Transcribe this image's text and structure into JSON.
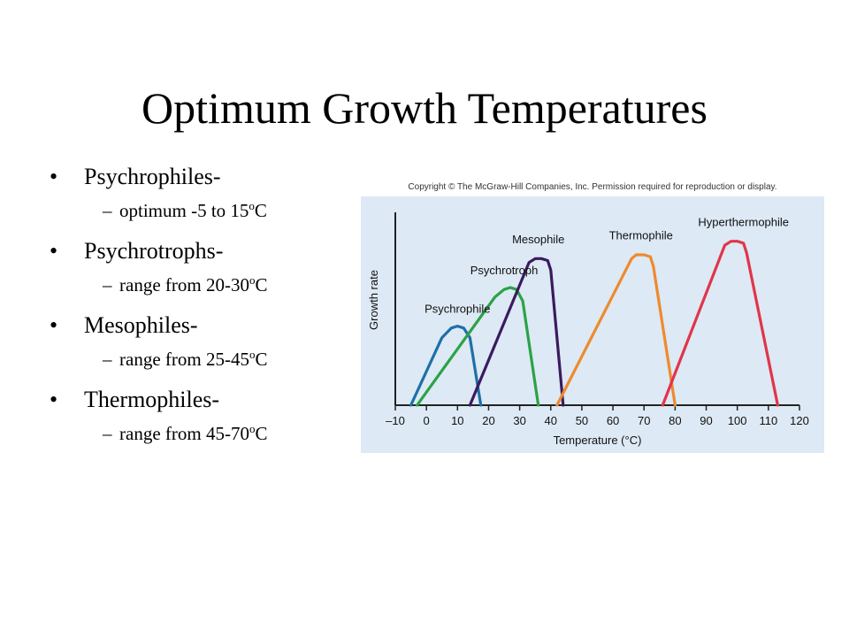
{
  "slide": {
    "title": "Optimum Growth Temperatures",
    "bullets": [
      {
        "heading": "Psychrophiles-",
        "dash": "–",
        "detail": "optimum -5 to 15",
        "deg": "o",
        "unit": "C"
      },
      {
        "heading": "Psychrotrophs-",
        "dash": "–",
        "detail": "range from 20-30",
        "deg": "o",
        "unit": "C"
      },
      {
        "heading": "Mesophiles-",
        "dash": "–",
        "detail": "range from 25-45",
        "deg": "o",
        "unit": "C"
      },
      {
        "heading": "Thermophiles-",
        "dash": "–",
        "detail": "range from 45-70",
        "deg": "o",
        "unit": "C"
      }
    ],
    "bullet_symbol": "•"
  },
  "figure": {
    "copyright": "Copyright © The McGraw-Hill Companies, Inc. Permission required for reproduction or display.",
    "background_color": "#dde9f4"
  },
  "chart_data": {
    "type": "line",
    "title": "",
    "xlabel": "Temperature (°C)",
    "ylabel": "Growth rate",
    "xlim": [
      -10,
      120
    ],
    "ylim": [
      0,
      100
    ],
    "xticks": [
      -10,
      0,
      10,
      20,
      30,
      40,
      50,
      60,
      70,
      80,
      90,
      100,
      110,
      120
    ],
    "xtick_labels": [
      "–10",
      "0",
      "10",
      "20",
      "30",
      "40",
      "50",
      "60",
      "70",
      "80",
      "90",
      "100",
      "110",
      "120"
    ],
    "grid": false,
    "series": [
      {
        "name": "Psychrophile",
        "color": "#1f6fa8",
        "x": [
          -5,
          5,
          8,
          10,
          12,
          14,
          17.5
        ],
        "y": [
          0,
          35,
          40,
          41,
          40,
          35,
          0
        ]
      },
      {
        "name": "Psychrotroph",
        "color": "#2aa345",
        "x": [
          -3,
          22,
          25,
          27,
          29,
          31,
          36
        ],
        "y": [
          0,
          56,
          60,
          61,
          60,
          54,
          0
        ]
      },
      {
        "name": "Mesophile",
        "color": "#3b1a5e",
        "x": [
          14,
          33,
          35,
          37,
          39,
          40,
          44
        ],
        "y": [
          0,
          74,
          76,
          76,
          75,
          70,
          0
        ]
      },
      {
        "name": "Thermophile",
        "color": "#ee8a2e",
        "x": [
          42,
          66,
          67.5,
          70,
          72,
          73,
          80
        ],
        "y": [
          0,
          76,
          78,
          78,
          77,
          72,
          0
        ]
      },
      {
        "name": "Hyperthermophile",
        "color": "#e0354a",
        "x": [
          76,
          96,
          98,
          100,
          102,
          103,
          113
        ],
        "y": [
          0,
          83,
          85,
          85,
          84,
          79,
          0
        ]
      }
    ],
    "annotations": [
      {
        "text": "Psychrophile",
        "x": 10,
        "y": 48
      },
      {
        "text": "Psychrotroph",
        "x": 25,
        "y": 68
      },
      {
        "text": "Mesophile",
        "x": 36,
        "y": 84
      },
      {
        "text": "Thermophile",
        "x": 69,
        "y": 86
      },
      {
        "text": "Hyperthermophile",
        "x": 102,
        "y": 93
      }
    ]
  }
}
